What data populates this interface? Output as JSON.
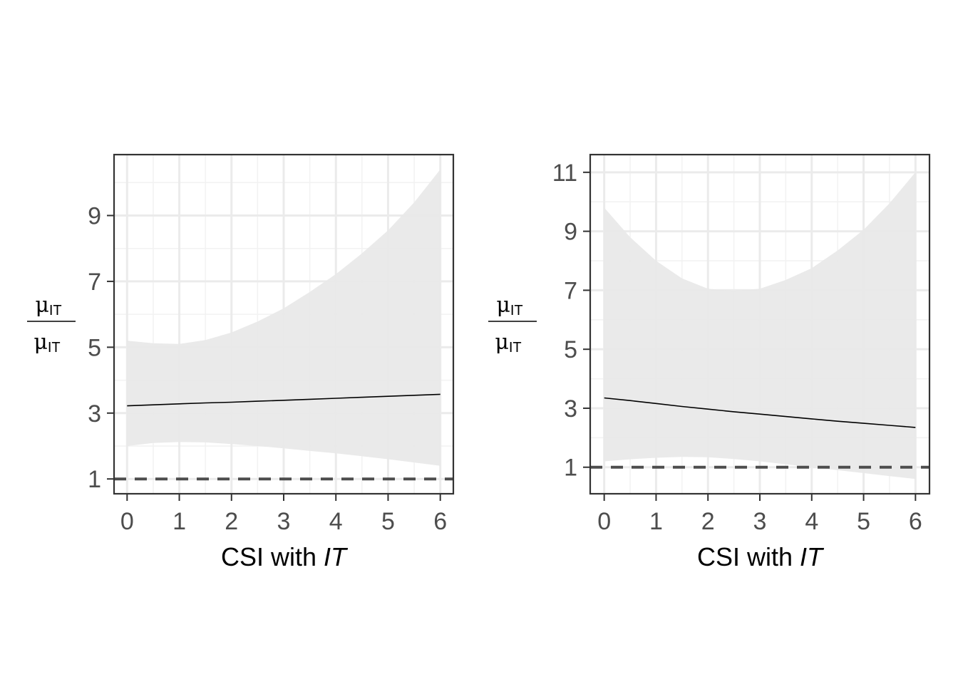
{
  "chart_data": [
    {
      "type": "line",
      "x_ticks": [
        0,
        1,
        2,
        3,
        4,
        5,
        6
      ],
      "y_ticks": [
        1,
        3,
        5,
        7,
        9
      ],
      "xlim": [
        -0.25,
        6.25
      ],
      "ylim": [
        0.55,
        10.85
      ],
      "xlabel_prefix": "CSI with ",
      "xlabel_italic": "IT",
      "ylabel": {
        "num_symbol": "μ",
        "num_sub": "IT",
        "den_symbol": "μ",
        "den_sub": "IT"
      },
      "reference_line": {
        "y": 1,
        "style": "dashed"
      },
      "series": [
        {
          "x": [
            0,
            0.5,
            1,
            1.5,
            2,
            2.5,
            3,
            3.5,
            4,
            4.5,
            5,
            5.5,
            6
          ],
          "fit": [
            3.22,
            3.25,
            3.28,
            3.31,
            3.33,
            3.36,
            3.39,
            3.42,
            3.45,
            3.48,
            3.51,
            3.54,
            3.57
          ],
          "upper": [
            5.2,
            5.12,
            5.1,
            5.22,
            5.45,
            5.78,
            6.18,
            6.68,
            7.22,
            7.85,
            8.55,
            9.4,
            10.4
          ],
          "lower": [
            2.0,
            2.09,
            2.12,
            2.11,
            2.06,
            2.0,
            1.93,
            1.85,
            1.78,
            1.69,
            1.6,
            1.5,
            1.4
          ]
        }
      ],
      "colors": {
        "fit": "#000000",
        "ribbon": "#e8e8e8",
        "reference": "#4d4d4d"
      }
    },
    {
      "type": "line",
      "x_ticks": [
        0,
        1,
        2,
        3,
        4,
        5,
        6
      ],
      "y_ticks": [
        1,
        3,
        5,
        7,
        9,
        11
      ],
      "xlim": [
        -0.27,
        6.27
      ],
      "ylim": [
        0.1,
        11.6
      ],
      "xlabel_prefix": "CSI with ",
      "xlabel_italic": "IT",
      "ylabel": {
        "num_symbol": "μ",
        "num_sub": "IT",
        "den_symbol": "μ",
        "den_sub": "IT"
      },
      "reference_line": {
        "y": 1,
        "style": "dashed"
      },
      "series": [
        {
          "x": [
            0,
            0.5,
            1,
            1.5,
            2,
            2.5,
            3,
            3.5,
            4,
            4.5,
            5,
            5.5,
            6
          ],
          "fit": [
            3.35,
            3.26,
            3.16,
            3.06,
            2.97,
            2.88,
            2.8,
            2.72,
            2.64,
            2.56,
            2.49,
            2.42,
            2.35
          ],
          "upper": [
            9.8,
            8.8,
            8.0,
            7.4,
            7.05,
            6.98,
            7.05,
            7.35,
            7.75,
            8.35,
            9.05,
            9.95,
            11.0
          ],
          "lower": [
            1.2,
            1.27,
            1.32,
            1.35,
            1.34,
            1.28,
            1.2,
            1.1,
            1.0,
            0.9,
            0.8,
            0.7,
            0.6
          ]
        }
      ],
      "colors": {
        "fit": "#000000",
        "ribbon": "#e8e8e8",
        "reference": "#4d4d4d"
      }
    }
  ]
}
